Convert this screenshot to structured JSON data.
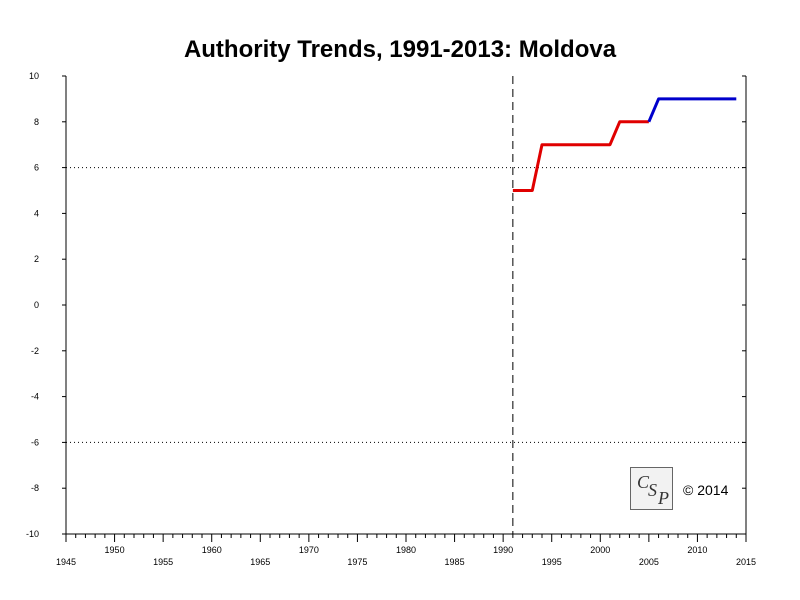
{
  "chart_data": {
    "type": "line",
    "title": "Authority Trends, 1991-2013: Moldova",
    "xlim": [
      1945,
      2015
    ],
    "ylim": [
      -10,
      10
    ],
    "x_major_ticks": [
      1945,
      1950,
      1955,
      1960,
      1965,
      1970,
      1975,
      1980,
      1985,
      1990,
      1995,
      2000,
      2005,
      2010,
      2015
    ],
    "y_ticks": [
      10,
      8,
      6,
      4,
      2,
      0,
      -2,
      -4,
      -6,
      -8,
      -10
    ],
    "reference_lines": {
      "horizontal_dotted": [
        6,
        -6
      ],
      "vertical_dashed": [
        1991
      ]
    },
    "series": [
      {
        "color": "#e00000",
        "points": [
          [
            1991,
            5
          ],
          [
            1993,
            5
          ],
          [
            1994,
            7
          ],
          [
            2001,
            7
          ],
          [
            2002,
            8
          ],
          [
            2005,
            8
          ]
        ]
      },
      {
        "color": "#0000cc",
        "points": [
          [
            2005,
            8
          ],
          [
            2006,
            9
          ],
          [
            2014,
            9
          ]
        ]
      }
    ]
  },
  "logo": {
    "letters": [
      "C",
      "S",
      "P"
    ]
  },
  "copyright": "© 2014"
}
